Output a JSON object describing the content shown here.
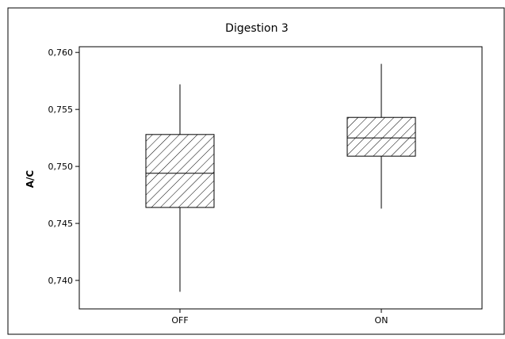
{
  "chart_data": {
    "type": "boxplot",
    "title": "Digestion 3",
    "xlabel": "",
    "ylabel": "A/C",
    "ylim": [
      0.7375,
      0.7605
    ],
    "yticks": [
      0.74,
      0.745,
      0.75,
      0.755,
      0.76
    ],
    "ytick_labels": [
      "0,740",
      "0,745",
      "0,750",
      "0,755",
      "0,760"
    ],
    "categories": [
      "OFF",
      "ON"
    ],
    "boxes": [
      {
        "category": "OFF",
        "whisker_low": 0.739,
        "q1": 0.7464,
        "median": 0.7494,
        "q3": 0.7528,
        "whisker_high": 0.7572
      },
      {
        "category": "ON",
        "whisker_low": 0.7463,
        "q1": 0.7509,
        "median": 0.7525,
        "q3": 0.7543,
        "whisker_high": 0.759
      }
    ],
    "box_fill": "diagonal-hatch",
    "grid": false,
    "legend": "none"
  }
}
